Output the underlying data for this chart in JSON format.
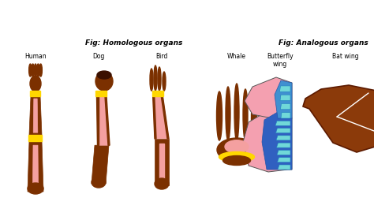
{
  "bg_color": "#ffffff",
  "title_homologous": "Fig: Homologous organs",
  "title_analogous": "Fig: Analogous organs",
  "labels": {
    "human": "Human",
    "dog": "Dog",
    "bird": "Bird",
    "whale": "Whale",
    "butterfly": "Butterfly\nwing",
    "bat": "Bat wing"
  },
  "colors": {
    "brown_dark": "#7B3000",
    "pink": "#F4A0A0",
    "yellow": "#FFD700",
    "butterfly_pink": "#F4A0B0",
    "butterfly_blue_dark": "#3060C0",
    "butterfly_blue_med": "#4090D0",
    "butterfly_cyan": "#70D8D8",
    "butterfly_blue_stripe": "#2080C0",
    "bat_brown": "#8B3A0A",
    "bat_brown_edge": "#5C1A00"
  },
  "figsize": [
    4.74,
    2.65
  ],
  "dpi": 100
}
